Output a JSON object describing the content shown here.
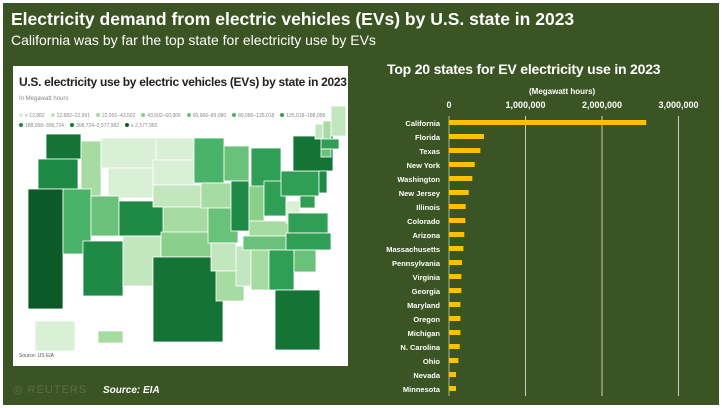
{
  "title": "Electricity demand from electric vehicles (EVs) by U.S. state in 2023",
  "subtitle": "California was by far the top state for electricity use by EVs",
  "map": {
    "title": "U.S. electricity use by electric vehicles (EVs) by state in 2023",
    "unit": "In Megawatt hours",
    "legend": [
      {
        "label": "< 12,882",
        "color": "#d9efd6"
      },
      {
        "label": "12,882–22,991",
        "color": "#c2e6bd"
      },
      {
        "label": "22,991–43,502",
        "color": "#a6dca1"
      },
      {
        "label": "43,502–60,966",
        "color": "#8bd08a"
      },
      {
        "label": "60,966–89,080",
        "color": "#6ac27a"
      },
      {
        "label": "89,080–125,018",
        "color": "#4ab36a"
      },
      {
        "label": "125,018–188,058",
        "color": "#2f9f55"
      },
      {
        "label": "188,058–308,724",
        "color": "#1f8a45"
      },
      {
        "label": "308,724–2,577,982",
        "color": "#137436"
      },
      {
        "label": "≥ 2,577,982",
        "color": "#0b5a27"
      }
    ],
    "source": "Source: US EIA"
  },
  "logo": "REUTERS",
  "source": "Source: EIA",
  "chart_data": {
    "type": "bar",
    "orientation": "horizontal",
    "title": "Top 20 states for EV electricity use in 2023",
    "xlabel": "(Megawatt hours)",
    "xlim": [
      0,
      3000000
    ],
    "xticks": [
      "0",
      "1,000,000",
      "2,000,000",
      "3,000,000"
    ],
    "grid": true,
    "bar_color": "#ffc000",
    "categories": [
      "California",
      "Florida",
      "Texas",
      "New York",
      "Washington",
      "New Jersey",
      "Illinois",
      "Colorado",
      "Arizona",
      "Massachusetts",
      "Pennsylvania",
      "Virginia",
      "Georgia",
      "Maryland",
      "Oregon",
      "Michigan",
      "N. Carolina",
      "Ohio",
      "Nevada",
      "Minnesota"
    ],
    "values": [
      2577982,
      457000,
      410000,
      336000,
      305000,
      258000,
      218000,
      214000,
      200000,
      188000,
      170000,
      162000,
      162000,
      149000,
      149000,
      149000,
      140000,
      122000,
      92000,
      92000
    ]
  }
}
